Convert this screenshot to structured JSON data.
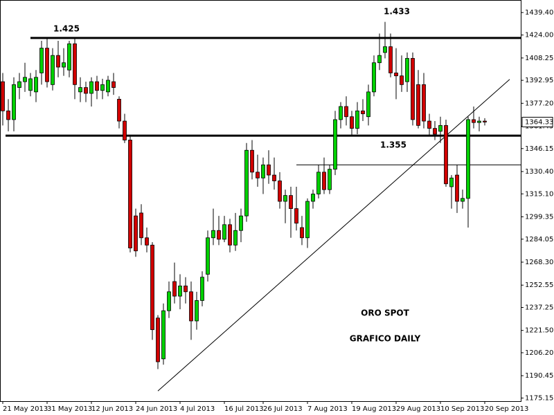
{
  "chart_data": {
    "type": "candlestick",
    "categories": [
      "21 May 2013",
      null,
      null,
      null,
      null,
      null,
      null,
      null,
      "31 May 2013",
      null,
      null,
      null,
      null,
      null,
      null,
      null,
      "12 Jun 2013",
      null,
      null,
      null,
      null,
      null,
      null,
      null,
      "24 Jun 2013",
      null,
      null,
      null,
      null,
      null,
      null,
      null,
      "4 Jul 2013",
      null,
      null,
      null,
      null,
      null,
      null,
      null,
      "16 Jul 2013",
      null,
      null,
      null,
      null,
      null,
      null,
      "26 Jul 2013",
      null,
      null,
      null,
      null,
      null,
      null,
      null,
      "7 Aug 2013",
      null,
      null,
      null,
      null,
      null,
      null,
      null,
      "19 Aug 2013",
      null,
      null,
      null,
      null,
      null,
      null,
      null,
      "29 Aug 2013",
      null,
      null,
      null,
      null,
      null,
      null,
      null,
      "10 Sep 2013",
      null,
      null,
      null,
      null,
      null,
      null,
      null,
      "20 Sep 2013"
    ],
    "open": [
      1392,
      1372,
      1366,
      1388,
      1392,
      1386,
      1385,
      1398,
      1415,
      1390,
      1410,
      1402,
      1400,
      1418,
      1385,
      1388,
      1384,
      1392,
      1386,
      1385,
      1392,
      1380,
      1365,
      1352,
      1300,
      1302,
      1285,
      1280,
      1230,
      1202,
      1235,
      1255,
      1245,
      1252,
      1248,
      1228,
      1242,
      1260,
      1285,
      1290,
      1284,
      1294,
      1280,
      1290,
      1300,
      1345,
      1330,
      1326,
      1335,
      1328,
      1324,
      1310,
      1314,
      1305,
      1292,
      1285,
      1310,
      1315,
      1330,
      1318,
      1332,
      1366,
      1375,
      1368,
      1360,
      1372,
      1368,
      1385,
      1405,
      1412,
      1416,
      1398,
      1396,
      1392,
      1408,
      1390,
      1390,
      1365,
      1360,
      1358,
      1362,
      1320,
      1328,
      1310,
      1312,
      1366,
      1364,
      1365
    ],
    "high": [
      1398,
      1380,
      1395,
      1398,
      1405,
      1398,
      1400,
      1420,
      1422,
      1415,
      1420,
      1415,
      1420,
      1422,
      1395,
      1392,
      1395,
      1396,
      1394,
      1396,
      1398,
      1382,
      1370,
      1355,
      1305,
      1308,
      1292,
      1282,
      1232,
      1240,
      1255,
      1268,
      1260,
      1258,
      1255,
      1248,
      1262,
      1290,
      1305,
      1300,
      1300,
      1298,
      1302,
      1305,
      1350,
      1352,
      1342,
      1340,
      1345,
      1340,
      1330,
      1318,
      1320,
      1320,
      1300,
      1312,
      1318,
      1335,
      1340,
      1335,
      1372,
      1378,
      1382,
      1372,
      1378,
      1380,
      1390,
      1410,
      1425,
      1433,
      1425,
      1415,
      1410,
      1412,
      1412,
      1400,
      1398,
      1370,
      1365,
      1368,
      1366,
      1328,
      1335,
      1318,
      1368,
      1375,
      1368,
      1367
    ],
    "low": [
      1362,
      1358,
      1358,
      1380,
      1385,
      1382,
      1378,
      1390,
      1388,
      1386,
      1395,
      1396,
      1395,
      1380,
      1378,
      1378,
      1375,
      1380,
      1380,
      1382,
      1383,
      1360,
      1350,
      1275,
      1272,
      1280,
      1275,
      1215,
      1195,
      1198,
      1230,
      1240,
      1236,
      1240,
      1215,
      1222,
      1238,
      1255,
      1280,
      1280,
      1282,
      1275,
      1276,
      1282,
      1296,
      1325,
      1320,
      1315,
      1322,
      1318,
      1305,
      1295,
      1285,
      1290,
      1280,
      1278,
      1305,
      1312,
      1315,
      1315,
      1328,
      1360,
      1362,
      1355,
      1356,
      1365,
      1362,
      1382,
      1400,
      1408,
      1395,
      1380,
      1385,
      1385,
      1362,
      1360,
      1360,
      1355,
      1352,
      1350,
      1320,
      1305,
      1302,
      1305,
      1292,
      1360,
      1358,
      1362
    ],
    "close": [
      1372,
      1366,
      1390,
      1392,
      1395,
      1394,
      1395,
      1415,
      1392,
      1410,
      1402,
      1405,
      1418,
      1390,
      1388,
      1384,
      1392,
      1386,
      1390,
      1393,
      1388,
      1365,
      1352,
      1278,
      1276,
      1285,
      1280,
      1222,
      1200,
      1235,
      1248,
      1245,
      1252,
      1248,
      1228,
      1242,
      1258,
      1285,
      1290,
      1284,
      1294,
      1280,
      1290,
      1300,
      1345,
      1330,
      1326,
      1335,
      1328,
      1324,
      1310,
      1314,
      1305,
      1295,
      1285,
      1310,
      1315,
      1330,
      1318,
      1332,
      1366,
      1375,
      1368,
      1360,
      1372,
      1370,
      1385,
      1405,
      1410,
      1416,
      1398,
      1396,
      1390,
      1408,
      1366,
      1362,
      1365,
      1360,
      1356,
      1362,
      1322,
      1326,
      1310,
      1312,
      1366,
      1364,
      1365,
      1364.33
    ],
    "up_color": "#00d000",
    "down_color": "#d00000",
    "ylim": [
      1173,
      1448
    ],
    "yticks": [
      1175.15,
      1190.45,
      {
        "value": 1206.2,
        "label": "1206.20"
      },
      {
        "value": 1221.5,
        "label": "1221.50"
      },
      1237.25,
      1252.55,
      {
        "value": 1268.3,
        "label": "1268.30"
      },
      1284.05,
      1299.35,
      {
        "value": 1315.1,
        "label": "1315.10"
      },
      {
        "value": 1330.4,
        "label": "1330.40"
      },
      1346.15,
      1361.45,
      {
        "value": 1377.2,
        "label": "1377.20"
      },
      1392.95,
      1408.25,
      {
        "value": 1424,
        "label": "1424.00"
      },
      {
        "value": 1439.4,
        "label": "1439.40"
      }
    ],
    "last_price": 1364.33,
    "levels": [
      {
        "value": 1422,
        "start": 5,
        "width": 3
      },
      {
        "value": 1355,
        "start": 0.5,
        "width": 3
      },
      {
        "value": 1335,
        "start": 53,
        "width": 1
      }
    ],
    "trendline": {
      "x": [
        28,
        91.5
      ],
      "y": [
        1180,
        1393.6
      ]
    },
    "annotations": [
      "1.425",
      "1.433",
      "1.355",
      "ORO SPOT",
      "GRAFICO DAILY"
    ]
  }
}
